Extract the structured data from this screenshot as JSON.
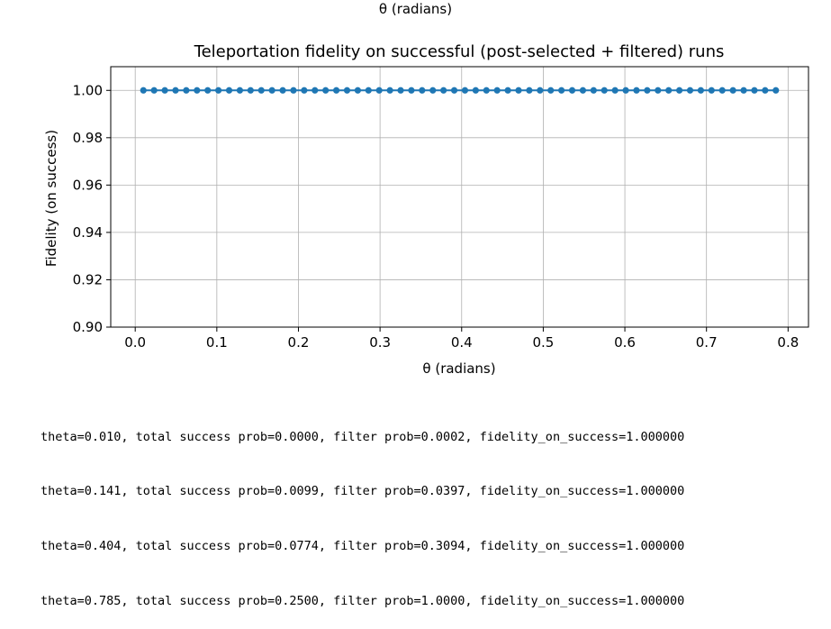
{
  "top_cutoff_label": "θ (radians)",
  "chart_data": {
    "type": "line",
    "title": "Teleportation fidelity on successful (post-selected + filtered) runs",
    "xlabel": "θ (radians)",
    "ylabel": "Fidelity (on success)",
    "xlim": [
      -0.03,
      0.825
    ],
    "ylim": [
      0.9,
      1.01
    ],
    "xticks": [
      0.0,
      0.1,
      0.2,
      0.3,
      0.4,
      0.5,
      0.6,
      0.7,
      0.8
    ],
    "xtick_labels": [
      "0.0",
      "0.1",
      "0.2",
      "0.3",
      "0.4",
      "0.5",
      "0.6",
      "0.7",
      "0.8"
    ],
    "yticks": [
      0.9,
      0.92,
      0.94,
      0.96,
      0.98,
      1.0
    ],
    "ytick_labels": [
      "0.90",
      "0.92",
      "0.94",
      "0.96",
      "0.98",
      "1.00"
    ],
    "grid": true,
    "color": "#1f77b4",
    "series": [
      {
        "x_start": 0.01,
        "x_end": 0.785,
        "n_points": 60,
        "y_constant": 1.0
      }
    ]
  },
  "console_lines": [
    "theta=0.010, total success prob=0.0000, filter prob=0.0002, fidelity_on_success=1.000000",
    "theta=0.141, total success prob=0.0099, filter prob=0.0397, fidelity_on_success=1.000000",
    "theta=0.404, total success prob=0.0774, filter prob=0.3094, fidelity_on_success=1.000000",
    "theta=0.785, total success prob=0.2500, filter prob=1.0000, fidelity_on_success=1.000000"
  ]
}
